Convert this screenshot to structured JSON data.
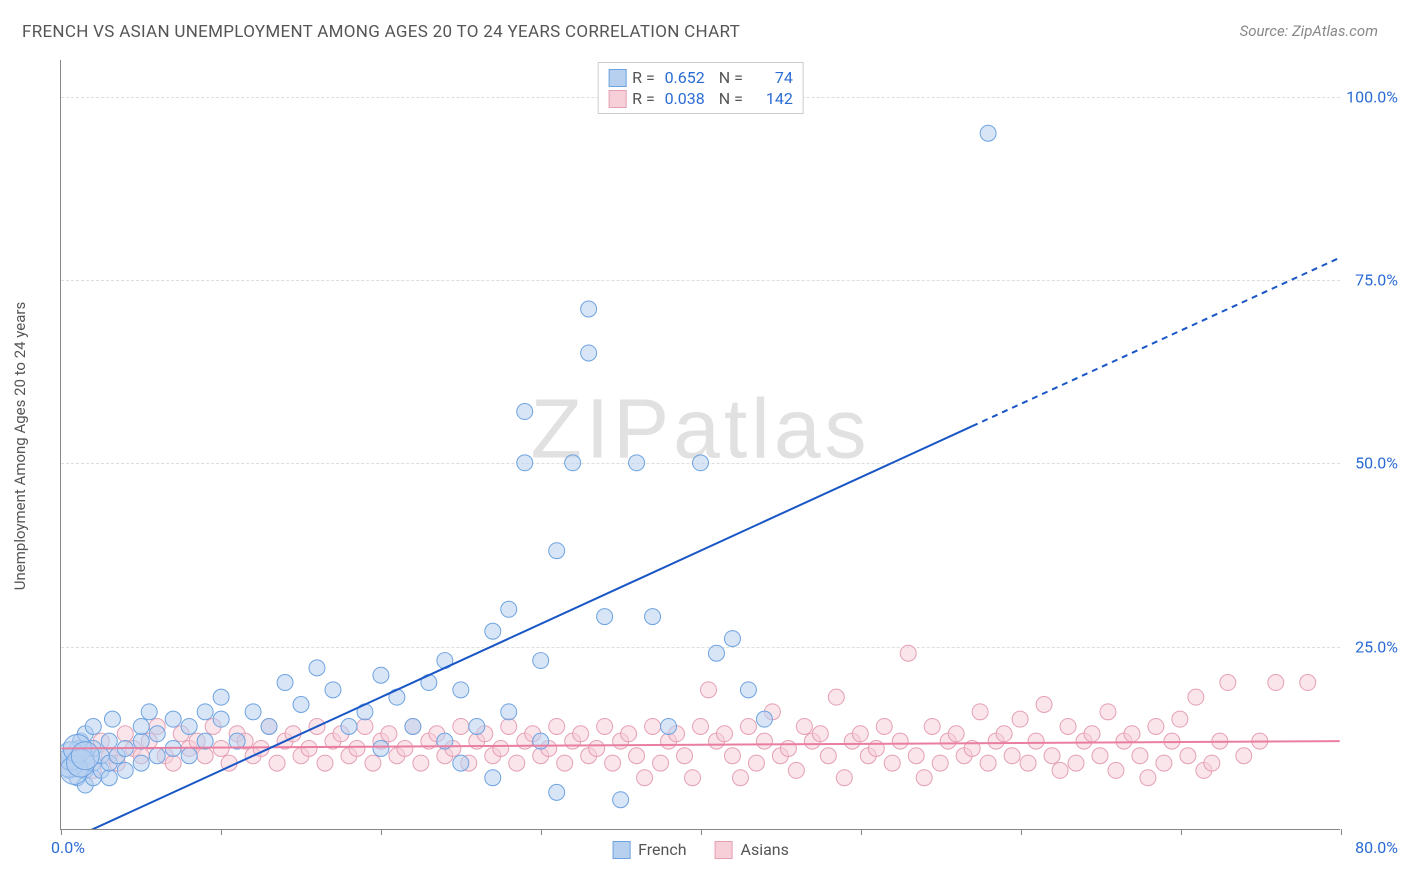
{
  "title": "FRENCH VS ASIAN UNEMPLOYMENT AMONG AGES 20 TO 24 YEARS CORRELATION CHART",
  "source": "Source: ZipAtlas.com",
  "watermark": "ZIPatlas",
  "ylabel": "Unemployment Among Ages 20 to 24 years",
  "chart": {
    "type": "scatter-correlation",
    "background_color": "#ffffff",
    "grid_color": "#dddddd",
    "axis_color": "#888888",
    "tick_label_color": "#2b6cd4",
    "text_color": "#555555",
    "xlim": [
      0,
      80
    ],
    "ylim": [
      0,
      105
    ],
    "xtick_step": 10,
    "yticks": [
      25,
      50,
      75,
      100
    ],
    "ytick_labels": [
      "25.0%",
      "50.0%",
      "75.0%",
      "100.0%"
    ],
    "x_min_label": "0.0%",
    "x_max_label": "80.0%",
    "title_fontsize": 17,
    "label_fontsize": 15,
    "tick_fontsize": 16,
    "marker_radius": 8,
    "marker_radius_large": 14,
    "marker_stroke_width": 1,
    "line_width": 2,
    "series": [
      {
        "name": "French",
        "fill": "#b7d0f0",
        "stroke": "#6ea3e0",
        "line_color": "#1956c6",
        "R": "0.652",
        "N": "74",
        "trend": {
          "x1": 0,
          "y1": -2,
          "x2": 80,
          "y2": 78,
          "dash_from_x": 57
        },
        "points": [
          [
            0.5,
            8
          ],
          [
            0.5,
            10
          ],
          [
            1,
            7
          ],
          [
            1,
            9
          ],
          [
            1,
            11
          ],
          [
            1.2,
            12
          ],
          [
            1.5,
            6
          ],
          [
            1.5,
            8
          ],
          [
            1.5,
            10
          ],
          [
            1.5,
            13
          ],
          [
            2,
            7
          ],
          [
            2,
            9
          ],
          [
            2,
            11
          ],
          [
            2,
            14
          ],
          [
            2.5,
            8
          ],
          [
            2.5,
            10
          ],
          [
            3,
            7
          ],
          [
            3,
            9
          ],
          [
            3,
            12
          ],
          [
            3.2,
            15
          ],
          [
            3.5,
            10
          ],
          [
            4,
            8
          ],
          [
            4,
            11
          ],
          [
            5,
            9
          ],
          [
            5,
            12
          ],
          [
            5,
            14
          ],
          [
            5.5,
            16
          ],
          [
            6,
            10
          ],
          [
            6,
            13
          ],
          [
            7,
            11
          ],
          [
            7,
            15
          ],
          [
            8,
            10
          ],
          [
            8,
            14
          ],
          [
            9,
            12
          ],
          [
            9,
            16
          ],
          [
            10,
            15
          ],
          [
            10,
            18
          ],
          [
            11,
            12
          ],
          [
            12,
            16
          ],
          [
            13,
            14
          ],
          [
            14,
            20
          ],
          [
            15,
            17
          ],
          [
            16,
            22
          ],
          [
            17,
            19
          ],
          [
            18,
            14
          ],
          [
            19,
            16
          ],
          [
            20,
            11
          ],
          [
            20,
            21
          ],
          [
            21,
            18
          ],
          [
            22,
            14
          ],
          [
            23,
            20
          ],
          [
            24,
            23
          ],
          [
            24,
            12
          ],
          [
            25,
            19
          ],
          [
            25,
            9
          ],
          [
            26,
            14
          ],
          [
            27,
            27
          ],
          [
            27,
            7
          ],
          [
            28,
            30
          ],
          [
            28,
            16
          ],
          [
            29,
            50
          ],
          [
            29,
            57
          ],
          [
            30,
            23
          ],
          [
            30,
            12
          ],
          [
            31,
            38
          ],
          [
            31,
            5
          ],
          [
            32,
            50
          ],
          [
            33,
            65
          ],
          [
            33,
            71
          ],
          [
            34,
            29
          ],
          [
            35,
            4
          ],
          [
            36,
            50
          ],
          [
            37,
            29
          ],
          [
            38,
            14
          ],
          [
            40,
            50
          ],
          [
            41,
            24
          ],
          [
            42,
            26
          ],
          [
            43,
            19
          ],
          [
            44,
            15
          ],
          [
            58,
            95
          ]
        ],
        "big_points": [
          [
            0.5,
            9
          ],
          [
            0.6,
            10
          ],
          [
            0.8,
            8
          ],
          [
            1.0,
            11
          ],
          [
            1.2,
            9
          ],
          [
            1.5,
            10
          ]
        ]
      },
      {
        "name": "Asians",
        "fill": "#f6cfd8",
        "stroke": "#e5a0b4",
        "line_color": "#e97ea0",
        "R": "0.038",
        "N": "142",
        "trend": {
          "x1": 0,
          "y1": 11,
          "x2": 80,
          "y2": 12
        },
        "points": [
          [
            0.5,
            9
          ],
          [
            1,
            10
          ],
          [
            1.5,
            11
          ],
          [
            2,
            8
          ],
          [
            2.5,
            12
          ],
          [
            3,
            10
          ],
          [
            3.5,
            9
          ],
          [
            4,
            13
          ],
          [
            4.5,
            11
          ],
          [
            5,
            10
          ],
          [
            5.5,
            12
          ],
          [
            6,
            14
          ],
          [
            6.5,
            10
          ],
          [
            7,
            9
          ],
          [
            7.5,
            13
          ],
          [
            8,
            11
          ],
          [
            8.5,
            12
          ],
          [
            9,
            10
          ],
          [
            9.5,
            14
          ],
          [
            10,
            11
          ],
          [
            10.5,
            9
          ],
          [
            11,
            13
          ],
          [
            11.5,
            12
          ],
          [
            12,
            10
          ],
          [
            12.5,
            11
          ],
          [
            13,
            14
          ],
          [
            13.5,
            9
          ],
          [
            14,
            12
          ],
          [
            14.5,
            13
          ],
          [
            15,
            10
          ],
          [
            15.5,
            11
          ],
          [
            16,
            14
          ],
          [
            16.5,
            9
          ],
          [
            17,
            12
          ],
          [
            17.5,
            13
          ],
          [
            18,
            10
          ],
          [
            18.5,
            11
          ],
          [
            19,
            14
          ],
          [
            19.5,
            9
          ],
          [
            20,
            12
          ],
          [
            20.5,
            13
          ],
          [
            21,
            10
          ],
          [
            21.5,
            11
          ],
          [
            22,
            14
          ],
          [
            22.5,
            9
          ],
          [
            23,
            12
          ],
          [
            23.5,
            13
          ],
          [
            24,
            10
          ],
          [
            24.5,
            11
          ],
          [
            25,
            14
          ],
          [
            25.5,
            9
          ],
          [
            26,
            12
          ],
          [
            26.5,
            13
          ],
          [
            27,
            10
          ],
          [
            27.5,
            11
          ],
          [
            28,
            14
          ],
          [
            28.5,
            9
          ],
          [
            29,
            12
          ],
          [
            29.5,
            13
          ],
          [
            30,
            10
          ],
          [
            30.5,
            11
          ],
          [
            31,
            14
          ],
          [
            31.5,
            9
          ],
          [
            32,
            12
          ],
          [
            32.5,
            13
          ],
          [
            33,
            10
          ],
          [
            33.5,
            11
          ],
          [
            34,
            14
          ],
          [
            34.5,
            9
          ],
          [
            35,
            12
          ],
          [
            35.5,
            13
          ],
          [
            36,
            10
          ],
          [
            36.5,
            7
          ],
          [
            37,
            14
          ],
          [
            37.5,
            9
          ],
          [
            38,
            12
          ],
          [
            38.5,
            13
          ],
          [
            39,
            10
          ],
          [
            39.5,
            7
          ],
          [
            40,
            14
          ],
          [
            40.5,
            19
          ],
          [
            41,
            12
          ],
          [
            41.5,
            13
          ],
          [
            42,
            10
          ],
          [
            42.5,
            7
          ],
          [
            43,
            14
          ],
          [
            43.5,
            9
          ],
          [
            44,
            12
          ],
          [
            44.5,
            16
          ],
          [
            45,
            10
          ],
          [
            45.5,
            11
          ],
          [
            46,
            8
          ],
          [
            46.5,
            14
          ],
          [
            47,
            12
          ],
          [
            47.5,
            13
          ],
          [
            48,
            10
          ],
          [
            48.5,
            18
          ],
          [
            49,
            7
          ],
          [
            49.5,
            12
          ],
          [
            50,
            13
          ],
          [
            50.5,
            10
          ],
          [
            51,
            11
          ],
          [
            51.5,
            14
          ],
          [
            52,
            9
          ],
          [
            52.5,
            12
          ],
          [
            53,
            24
          ],
          [
            53.5,
            10
          ],
          [
            54,
            7
          ],
          [
            54.5,
            14
          ],
          [
            55,
            9
          ],
          [
            55.5,
            12
          ],
          [
            56,
            13
          ],
          [
            56.5,
            10
          ],
          [
            57,
            11
          ],
          [
            57.5,
            16
          ],
          [
            58,
            9
          ],
          [
            58.5,
            12
          ],
          [
            59,
            13
          ],
          [
            59.5,
            10
          ],
          [
            60,
            15
          ],
          [
            60.5,
            9
          ],
          [
            61,
            12
          ],
          [
            61.5,
            17
          ],
          [
            62,
            10
          ],
          [
            62.5,
            8
          ],
          [
            63,
            14
          ],
          [
            63.5,
            9
          ],
          [
            64,
            12
          ],
          [
            64.5,
            13
          ],
          [
            65,
            10
          ],
          [
            65.5,
            16
          ],
          [
            66,
            8
          ],
          [
            66.5,
            12
          ],
          [
            67,
            13
          ],
          [
            67.5,
            10
          ],
          [
            68,
            7
          ],
          [
            68.5,
            14
          ],
          [
            69,
            9
          ],
          [
            69.5,
            12
          ],
          [
            70,
            15
          ],
          [
            70.5,
            10
          ],
          [
            71,
            18
          ],
          [
            71.5,
            8
          ],
          [
            72,
            9
          ],
          [
            72.5,
            12
          ],
          [
            73,
            20
          ],
          [
            74,
            10
          ],
          [
            75,
            12
          ],
          [
            76,
            20
          ],
          [
            78,
            20
          ]
        ]
      }
    ]
  }
}
